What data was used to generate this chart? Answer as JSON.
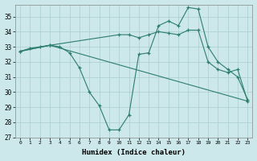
{
  "line1_x": [
    0,
    1,
    2,
    3,
    4,
    5,
    6,
    7,
    8,
    9,
    10,
    11,
    12,
    13,
    14,
    15,
    16,
    17,
    18,
    19,
    20,
    21,
    22,
    23
  ],
  "line1_y": [
    32.7,
    32.9,
    33.0,
    33.1,
    33.0,
    32.6,
    31.6,
    30.0,
    29.1,
    27.5,
    27.5,
    28.5,
    32.5,
    32.6,
    34.4,
    34.7,
    34.4,
    35.6,
    35.5,
    33.0,
    32.0,
    31.5,
    31.0,
    29.5
  ],
  "line2_x": [
    0,
    3,
    10,
    11,
    12,
    13,
    14,
    15,
    16,
    17,
    18,
    19,
    20,
    21,
    22,
    23
  ],
  "line2_y": [
    32.7,
    33.1,
    33.8,
    33.8,
    33.6,
    33.8,
    34.0,
    33.9,
    33.8,
    34.1,
    34.1,
    32.0,
    31.5,
    31.3,
    31.5,
    29.4
  ],
  "line3_x": [
    0,
    3,
    23
  ],
  "line3_y": [
    32.7,
    33.1,
    29.4
  ],
  "color": "#2d7d6d",
  "bg_color": "#cce8ea",
  "grid_color": "#aacdd0",
  "xlabel": "Humidex (Indice chaleur)",
  "xlim": [
    -0.5,
    23.5
  ],
  "ylim": [
    27,
    35.8
  ],
  "yticks": [
    27,
    28,
    29,
    30,
    31,
    32,
    33,
    34,
    35
  ],
  "xticks": [
    0,
    1,
    2,
    3,
    4,
    5,
    6,
    7,
    8,
    9,
    10,
    11,
    12,
    13,
    14,
    15,
    16,
    17,
    18,
    19,
    20,
    21,
    22,
    23
  ],
  "marker": "+"
}
